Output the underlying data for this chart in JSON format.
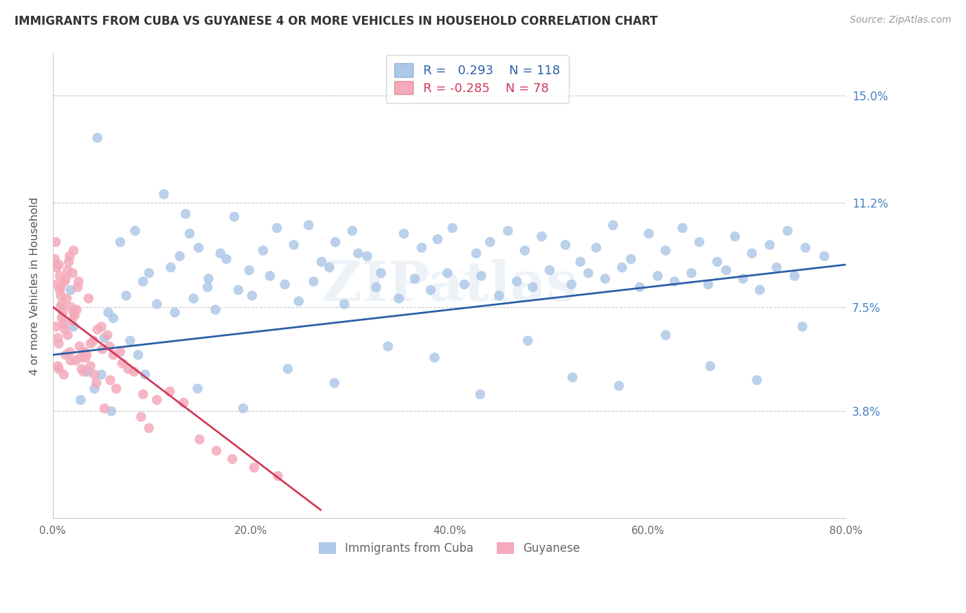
{
  "title": "IMMIGRANTS FROM CUBA VS GUYANESE 4 OR MORE VEHICLES IN HOUSEHOLD CORRELATION CHART",
  "source": "Source: ZipAtlas.com",
  "ylabel": "4 or more Vehicles in Household",
  "legend_label_1": "Immigrants from Cuba",
  "legend_label_2": "Guyanese",
  "R1": 0.293,
  "N1": 118,
  "R2": -0.285,
  "N2": 78,
  "color_blue": "#aec8e8",
  "color_pink": "#f4aabb",
  "line_color_blue": "#2a5fa8",
  "line_color_pink": "#d03a55",
  "x_min": 0.0,
  "x_max": 80.0,
  "y_min": 0.0,
  "y_max": 16.5,
  "y_ticks": [
    3.8,
    7.5,
    11.2,
    15.0
  ],
  "x_ticks": [
    0.0,
    20.0,
    40.0,
    60.0,
    80.0
  ],
  "watermark": "ZIPatlas",
  "blue_x": [
    2.1,
    3.5,
    1.8,
    4.2,
    5.6,
    3.1,
    6.8,
    5.2,
    7.4,
    4.9,
    8.3,
    6.1,
    9.7,
    7.8,
    11.2,
    9.1,
    12.8,
    10.5,
    8.6,
    13.4,
    11.9,
    14.7,
    12.3,
    15.6,
    13.8,
    16.9,
    14.2,
    18.3,
    15.7,
    17.5,
    19.8,
    16.4,
    21.2,
    18.7,
    22.6,
    20.1,
    24.3,
    21.9,
    25.8,
    23.4,
    27.1,
    24.8,
    28.5,
    26.3,
    30.2,
    27.9,
    31.7,
    29.4,
    33.1,
    30.8,
    35.4,
    32.6,
    37.2,
    34.9,
    38.8,
    36.5,
    40.3,
    38.1,
    42.7,
    39.8,
    44.1,
    41.5,
    45.9,
    43.2,
    47.6,
    45.0,
    49.3,
    46.8,
    51.7,
    48.4,
    53.2,
    50.1,
    54.8,
    52.3,
    56.5,
    54.0,
    58.3,
    55.7,
    60.1,
    57.4,
    61.8,
    59.2,
    63.5,
    61.0,
    65.2,
    62.7,
    67.0,
    64.4,
    68.8,
    66.1,
    70.5,
    67.9,
    72.3,
    69.6,
    74.1,
    71.3,
    75.9,
    73.0,
    77.8,
    74.8,
    2.8,
    5.9,
    9.3,
    14.6,
    19.2,
    23.7,
    28.4,
    33.8,
    38.5,
    43.1,
    47.9,
    52.4,
    57.1,
    61.8,
    66.3,
    71.0,
    75.6,
    4.5
  ],
  "blue_y": [
    6.8,
    5.2,
    8.1,
    4.6,
    7.3,
    5.9,
    9.8,
    6.4,
    7.9,
    5.1,
    10.2,
    7.1,
    8.7,
    6.3,
    11.5,
    8.4,
    9.3,
    7.6,
    5.8,
    10.8,
    8.9,
    9.6,
    7.3,
    8.2,
    10.1,
    9.4,
    7.8,
    10.7,
    8.5,
    9.2,
    8.8,
    7.4,
    9.5,
    8.1,
    10.3,
    7.9,
    9.7,
    8.6,
    10.4,
    8.3,
    9.1,
    7.7,
    9.8,
    8.4,
    10.2,
    8.9,
    9.3,
    7.6,
    8.7,
    9.4,
    10.1,
    8.2,
    9.6,
    7.8,
    9.9,
    8.5,
    10.3,
    8.1,
    9.4,
    8.7,
    9.8,
    8.3,
    10.2,
    8.6,
    9.5,
    7.9,
    10.0,
    8.4,
    9.7,
    8.2,
    9.1,
    8.8,
    9.6,
    8.3,
    10.4,
    8.7,
    9.2,
    8.5,
    10.1,
    8.9,
    9.5,
    8.2,
    10.3,
    8.6,
    9.8,
    8.4,
    9.1,
    8.7,
    10.0,
    8.3,
    9.4,
    8.8,
    9.7,
    8.5,
    10.2,
    8.1,
    9.6,
    8.9,
    9.3,
    8.6,
    4.2,
    3.8,
    5.1,
    4.6,
    3.9,
    5.3,
    4.8,
    6.1,
    5.7,
    4.4,
    6.3,
    5.0,
    4.7,
    6.5,
    5.4,
    4.9,
    6.8,
    13.5
  ],
  "pink_x": [
    0.3,
    0.5,
    0.8,
    1.1,
    0.4,
    0.6,
    0.9,
    1.3,
    0.7,
    1.5,
    0.2,
    1.0,
    1.7,
    0.4,
    1.2,
    1.8,
    0.6,
    2.1,
    1.4,
    0.8,
    2.3,
    1.6,
    0.5,
    2.6,
    1.9,
    0.3,
    2.8,
    2.0,
    1.1,
    3.1,
    0.7,
    2.4,
    1.7,
    3.4,
    0.9,
    2.7,
    1.3,
    3.8,
    2.2,
    0.6,
    4.1,
    1.5,
    3.2,
    0.8,
    4.5,
    2.5,
    1.8,
    5.0,
    3.6,
    2.9,
    5.5,
    4.2,
    1.2,
    6.1,
    3.8,
    5.8,
    2.1,
    7.0,
    4.9,
    6.4,
    8.2,
    5.7,
    3.3,
    9.1,
    6.8,
    4.4,
    10.5,
    7.6,
    5.2,
    11.8,
    8.9,
    13.2,
    9.7,
    14.8,
    16.5,
    18.1,
    20.3,
    22.7
  ],
  "pink_y": [
    6.8,
    5.4,
    7.9,
    5.1,
    8.3,
    6.2,
    7.1,
    5.8,
    8.6,
    6.5,
    9.2,
    7.3,
    5.9,
    8.9,
    6.7,
    7.5,
    5.3,
    9.5,
    7.8,
    8.2,
    5.6,
    9.1,
    6.4,
    8.4,
    7.0,
    9.8,
    5.7,
    8.7,
    6.9,
    5.2,
    8.1,
    7.4,
    9.3,
    5.8,
    7.6,
    6.1,
    8.5,
    5.4,
    7.2,
    9.0,
    6.3,
    8.8,
    5.9,
    7.5,
    6.7,
    8.2,
    5.6,
    6.0,
    7.8,
    5.3,
    6.5,
    5.1,
    8.4,
    5.8,
    6.2,
    4.9,
    7.3,
    5.5,
    6.8,
    4.6,
    5.2,
    6.1,
    5.7,
    4.4,
    5.9,
    4.8,
    4.2,
    5.3,
    3.9,
    4.5,
    3.6,
    4.1,
    3.2,
    2.8,
    2.4,
    2.1,
    1.8,
    1.5
  ],
  "pink_line_x_end": 27.0,
  "blue_line_start_y": 5.8,
  "blue_line_end_y": 9.0
}
